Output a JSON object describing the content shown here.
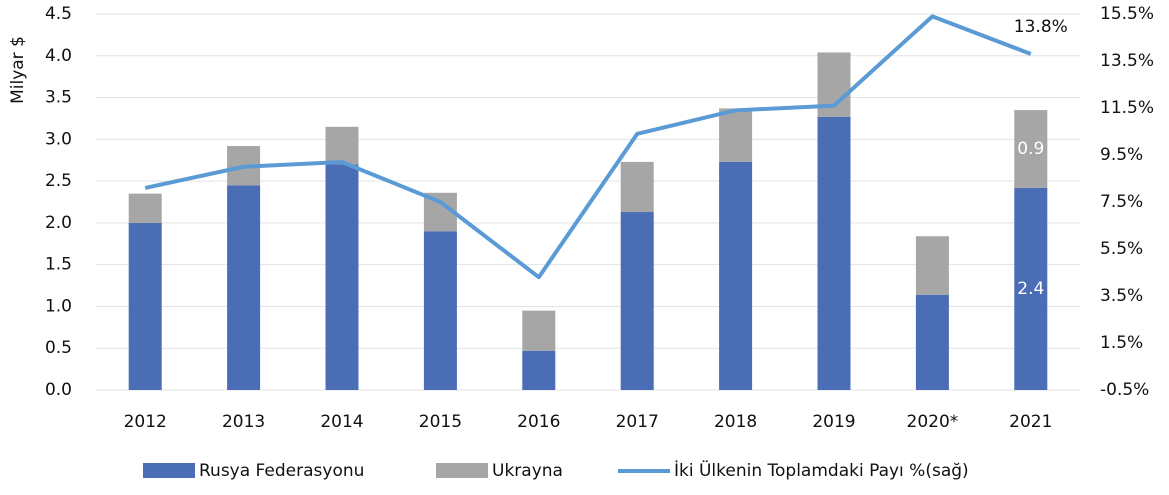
{
  "chart_data": {
    "type": "bar-line",
    "y_label": "Milyar $",
    "categories": [
      "2012",
      "2013",
      "2014",
      "2015",
      "2016",
      "2017",
      "2018",
      "2019",
      "2020*",
      "2021"
    ],
    "series": [
      {
        "name": "Rusya Federasyonu",
        "color": "#4a6db5",
        "type": "bar",
        "values": [
          2.0,
          2.45,
          2.7,
          1.9,
          0.47,
          2.13,
          2.73,
          3.27,
          1.14,
          2.42
        ],
        "value_labels": [
          null,
          null,
          null,
          null,
          null,
          null,
          null,
          null,
          null,
          "2.4"
        ]
      },
      {
        "name": "Ukrayna",
        "color": "#a6a6a6",
        "type": "bar",
        "values": [
          0.35,
          0.47,
          0.45,
          0.46,
          0.48,
          0.6,
          0.64,
          0.77,
          0.7,
          0.93
        ],
        "value_labels": [
          null,
          null,
          null,
          null,
          null,
          null,
          null,
          null,
          null,
          "0.9"
        ]
      },
      {
        "name": "İki Ülkenin Toplamdaki Payı %(sağ)",
        "color": "#5b9bd5",
        "type": "line",
        "axis": "y2",
        "values": [
          8.1,
          9.0,
          9.2,
          7.5,
          4.3,
          10.4,
          11.4,
          11.6,
          15.4,
          13.8
        ],
        "value_labels": [
          null,
          null,
          null,
          null,
          null,
          null,
          null,
          null,
          null,
          "13.8%"
        ]
      }
    ],
    "ylim": [
      0,
      4.5
    ],
    "yticks": [
      {
        "value": 0,
        "label": "0.0"
      },
      0.5,
      {
        "value": 1,
        "label": "1.0"
      },
      1.5,
      {
        "value": 2,
        "label": "2.0"
      },
      2.5,
      {
        "value": 3,
        "label": "3.0"
      },
      3.5,
      {
        "value": 4,
        "label": "4.0"
      },
      4.5
    ],
    "y2lim": [
      -0.5,
      15.5
    ],
    "y2ticks": [
      {
        "value": -0.5,
        "label": "-0.5%"
      },
      {
        "value": 1.5,
        "label": "1.5%"
      },
      {
        "value": 3.5,
        "label": "3.5%"
      },
      {
        "value": 5.5,
        "label": "5.5%"
      },
      {
        "value": 7.5,
        "label": "7.5%"
      },
      {
        "value": 9.5,
        "label": "9.5%"
      },
      {
        "value": 11.5,
        "label": "11.5%"
      },
      {
        "value": 13.5,
        "label": "13.5%"
      },
      {
        "value": 15.5,
        "label": "15.5%"
      }
    ],
    "grid": true,
    "legend": "bottom"
  }
}
